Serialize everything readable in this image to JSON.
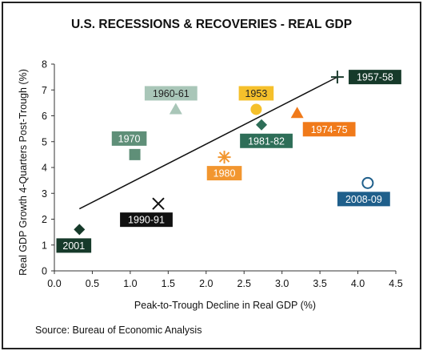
{
  "chart_data": {
    "type": "scatter",
    "title": "U.S. RECESSIONS & RECOVERIES - REAL GDP",
    "xlabel": "Peak-to-Trough Decline in Real GDP (%)",
    "ylabel": "Real GDP Growth 4-Quarters Post-Trough (%)",
    "xlim": [
      0.0,
      4.5
    ],
    "ylim": [
      0,
      8
    ],
    "xticks": [
      "0.0",
      "0.5",
      "1.0",
      "1.5",
      "2.0",
      "2.5",
      "3.0",
      "3.5",
      "4.0",
      "4.5"
    ],
    "yticks": [
      "0",
      "1",
      "2",
      "3",
      "4",
      "5",
      "6",
      "7",
      "8"
    ],
    "grid": false,
    "points": [
      {
        "label": "1957-58",
        "x": 3.73,
        "y": 7.5,
        "marker": "plus",
        "color": "#1d3c2e",
        "label_bg": "#163a2a",
        "label_color": "#ffffff"
      },
      {
        "label": "1953",
        "x": 2.66,
        "y": 6.25,
        "marker": "circle",
        "color": "#f5c02b",
        "label_bg": "#f5c02b",
        "label_color": "#222222"
      },
      {
        "label": "1960-61",
        "x": 1.6,
        "y": 6.25,
        "marker": "triangle",
        "color": "#a9c6b8",
        "label_bg": "#a9c6b8",
        "label_color": "#222222"
      },
      {
        "label": "1974-75",
        "x": 3.2,
        "y": 6.1,
        "marker": "triangle",
        "color": "#f07a1a",
        "label_bg": "#f07a1a",
        "label_color": "#ffffff"
      },
      {
        "label": "1981-82",
        "x": 2.73,
        "y": 5.65,
        "marker": "diamond",
        "color": "#2e6e58",
        "label_bg": "#2e6e58",
        "label_color": "#ffffff"
      },
      {
        "label": "1970",
        "x": 1.06,
        "y": 4.5,
        "marker": "square",
        "color": "#5f8f78",
        "label_bg": "#5f8f78",
        "label_color": "#ffffff"
      },
      {
        "label": "1980",
        "x": 2.24,
        "y": 4.4,
        "marker": "asterisk",
        "color": "#f2962f",
        "label_bg": "#f2962f",
        "label_color": "#ffffff"
      },
      {
        "label": "2008-09",
        "x": 4.13,
        "y": 3.4,
        "marker": "open-circle",
        "color": "#1f5f8b",
        "label_bg": "#1f5f8b",
        "label_color": "#ffffff"
      },
      {
        "label": "1990-91",
        "x": 1.37,
        "y": 2.6,
        "marker": "x",
        "color": "#111111",
        "label_bg": "#111111",
        "label_color": "#ffffff"
      },
      {
        "label": "2001",
        "x": 0.33,
        "y": 1.6,
        "marker": "diamond",
        "color": "#163a2a",
        "label_bg": "#163a2a",
        "label_color": "#ffffff"
      }
    ],
    "trendline": {
      "x": [
        0.33,
        3.73
      ],
      "y": [
        2.4,
        7.5
      ]
    }
  },
  "source": "Source: Bureau of Economic Analysis"
}
